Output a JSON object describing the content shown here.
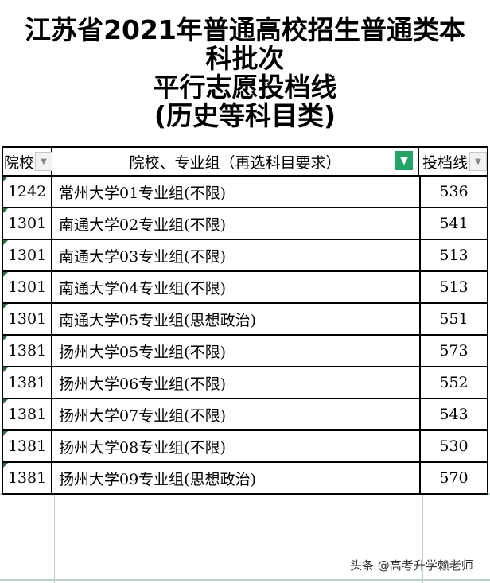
{
  "title": {
    "lines": [
      "江苏省2021年普通高校招生普通类本",
      "科批次",
      "平行志愿投档线",
      "(历史等科目类)"
    ]
  },
  "header": {
    "col1": "院校",
    "col2": "院校、专业组（再选科目要求）",
    "col3": "投档线",
    "filter_icon": "filter-dropdown-icon",
    "active_filter_icon": "filter-active-icon",
    "accent": "#1fa463"
  },
  "rows": [
    {
      "code": "1242",
      "group": "常州大学01专业组(不限)",
      "score": "536"
    },
    {
      "code": "1301",
      "group": "南通大学02专业组(不限)",
      "score": "541"
    },
    {
      "code": "1301",
      "group": "南通大学03专业组(不限)",
      "score": "513"
    },
    {
      "code": "1301",
      "group": "南通大学04专业组(不限)",
      "score": "513"
    },
    {
      "code": "1301",
      "group": "南通大学05专业组(思想政治)",
      "score": "551"
    },
    {
      "code": "1381",
      "group": "扬州大学05专业组(不限)",
      "score": "573"
    },
    {
      "code": "1381",
      "group": "扬州大学06专业组(不限)",
      "score": "552"
    },
    {
      "code": "1381",
      "group": "扬州大学07专业组(不限)",
      "score": "543"
    },
    {
      "code": "1381",
      "group": "扬州大学08专业组(不限)",
      "score": "530"
    },
    {
      "code": "1381",
      "group": "扬州大学09专业组(思想政治)",
      "score": "570"
    }
  ],
  "watermark": "头条 @高考升学赖老师"
}
